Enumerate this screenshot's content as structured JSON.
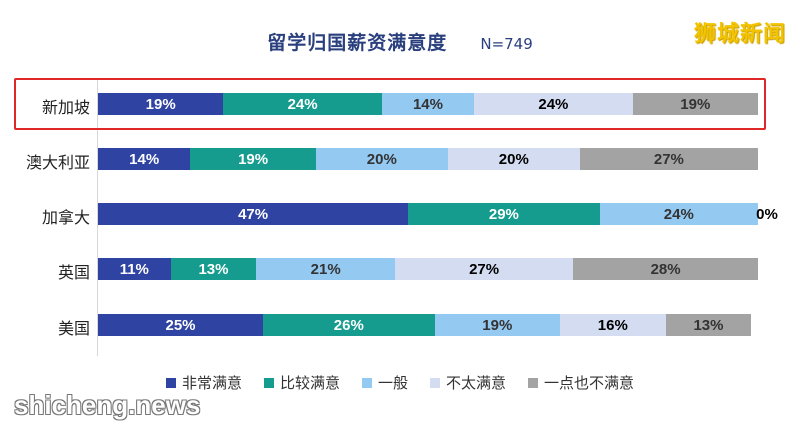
{
  "title": "留学归国薪资满意度",
  "sample": "N=749",
  "brand": "狮城新闻",
  "watermark": "shicheng.news",
  "highlight_category": "新加坡",
  "chart_data": {
    "type": "bar",
    "orientation": "horizontal",
    "stacked": "percent",
    "title": "留学归国薪资满意度",
    "categories": [
      "新加坡",
      "澳大利亚",
      "加拿大",
      "英国",
      "美国"
    ],
    "series": [
      {
        "name": "非常满意",
        "color": "#2f43a2",
        "text_color": "#ffffff",
        "values": [
          19,
          14,
          47,
          11,
          25
        ]
      },
      {
        "name": "比较满意",
        "color": "#159c8e",
        "text_color": "#ffffff",
        "values": [
          24,
          19,
          29,
          13,
          26
        ]
      },
      {
        "name": "一般",
        "color": "#94c9f2",
        "text_color": "#333333",
        "values": [
          14,
          20,
          24,
          21,
          19
        ]
      },
      {
        "name": "不太满意",
        "color": "#d3dcf1",
        "text_color": "#000000",
        "values": [
          24,
          20,
          0,
          27,
          16
        ]
      },
      {
        "name": "一点也不满意",
        "color": "#a3a3a3",
        "text_color": "#333333",
        "values": [
          19,
          27,
          0,
          28,
          13
        ]
      }
    ],
    "labels": [
      [
        "19%",
        "24%",
        "14%",
        "24%",
        "19%"
      ],
      [
        "14%",
        "19%",
        "20%",
        "20%",
        "27%"
      ],
      [
        "47%",
        "29%",
        "24%",
        "0%",
        ""
      ],
      [
        "11%",
        "13%",
        "21%",
        "27%",
        "28%"
      ],
      [
        "25%",
        "26%",
        "19%",
        "16%",
        "13%"
      ]
    ],
    "legend_position": "bottom",
    "grid": false
  }
}
